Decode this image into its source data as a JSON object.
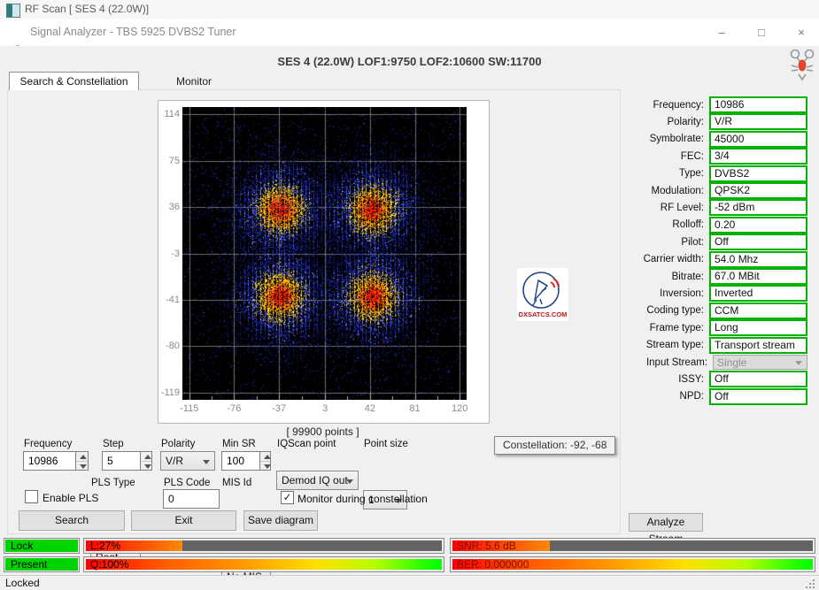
{
  "window": {
    "outer_title": "RF Scan [ SES 4 (22.0W)]",
    "title": "Signal Analyzer - TBS 5925 DVBS2 Tuner",
    "header": "SES 4 (22.0W) LOF1:9750 LOF2:10600 SW:11700",
    "minimize": "–",
    "maximize": "□",
    "close": "×",
    "status_text": "Locked"
  },
  "tabs": [
    {
      "label": "Search & Constellation",
      "active": true
    },
    {
      "label": "Monitor",
      "active": false
    }
  ],
  "chart_data": {
    "type": "scatter",
    "subtype": "constellation-heatmap",
    "modulation": "QPSK2",
    "caption": "[ 99900 points ]",
    "points_total": 99900,
    "x_ticks": [
      -115,
      -76,
      -37,
      3,
      42,
      81,
      120
    ],
    "y_ticks": [
      114,
      75,
      36,
      -3,
      -41,
      -80,
      -119
    ],
    "xlim": [
      -121,
      126
    ],
    "ylim": [
      -125,
      120
    ],
    "clusters": [
      {
        "i": -36,
        "q": 34
      },
      {
        "i": 44,
        "q": 34
      },
      {
        "i": -36,
        "q": -39
      },
      {
        "i": 44,
        "q": -39
      }
    ],
    "grid": true,
    "background": "#000000",
    "grid_color": "#8a8a8a",
    "heat_palette": [
      "#131b86",
      "#2030cf",
      "#4356f0",
      "#ffdf30",
      "#ffaa00",
      "#ff6400",
      "#ff1c00"
    ]
  },
  "tooltip": {
    "text": "Constellation: -92, -68"
  },
  "watermark": {
    "text": "DXSATCS.COM"
  },
  "controls": {
    "frequency": {
      "label": "Frequency",
      "value": "10986"
    },
    "step": {
      "label": "Step",
      "value": "5"
    },
    "polarity": {
      "label": "Polarity",
      "value": "V/R"
    },
    "min_sr": {
      "label": "Min SR",
      "value": "100"
    },
    "iqscan_point": {
      "label": "IQScan point",
      "value": "Demod IQ out"
    },
    "point_size": {
      "label": "Point size",
      "value": "1"
    },
    "enable_pls": {
      "label": "Enable PLS",
      "checked": false
    },
    "pls_type": {
      "label": "PLS Type",
      "value": "Root"
    },
    "pls_code": {
      "label": "PLS Code",
      "value": "0"
    },
    "mis_id": {
      "label": "MIS Id",
      "value": "No MIS"
    },
    "monitor_during": {
      "label": "Monitor during constellation",
      "checked": true
    },
    "buttons": {
      "search": "Search",
      "exit": "Exit",
      "save_diagram": "Save diagram",
      "analyze_stream": "Analyze Stream"
    }
  },
  "right_panel": {
    "fields": [
      {
        "label": "Frequency:",
        "value": "10986",
        "type": "box"
      },
      {
        "label": "Polarity:",
        "value": "V/R",
        "type": "box"
      },
      {
        "label": "Symbolrate:",
        "value": "45000",
        "type": "box"
      },
      {
        "label": "FEC:",
        "value": "3/4",
        "type": "box"
      },
      {
        "label": "Type:",
        "value": "DVBS2",
        "type": "box"
      },
      {
        "label": "Modulation:",
        "value": "QPSK2",
        "type": "box"
      },
      {
        "label": "RF Level:",
        "value": "-52 dBm",
        "type": "box"
      },
      {
        "label": "Rolloff:",
        "value": "0.20",
        "type": "box"
      },
      {
        "label": "Pilot:",
        "value": "Off",
        "type": "box"
      },
      {
        "label": "Carrier width:",
        "value": "54.0 Mhz",
        "type": "box"
      },
      {
        "label": "Bitrate:",
        "value": "67.0 MBit",
        "type": "box"
      },
      {
        "label": "Inversion:",
        "value": "Inverted",
        "type": "box"
      },
      {
        "label": "Coding type:",
        "value": "CCM",
        "type": "box"
      },
      {
        "label": "Frame type:",
        "value": "Long",
        "type": "box"
      },
      {
        "label": "Stream type:",
        "value": "Transport stream",
        "type": "box"
      },
      {
        "label": "Input Stream:",
        "value": "Single",
        "type": "dropdown_disabled"
      },
      {
        "label": "ISSY:",
        "value": "Off",
        "type": "box"
      },
      {
        "label": "NPD:",
        "value": "Off",
        "type": "box"
      }
    ],
    "field_border_color": "#00b300"
  },
  "status_bars": {
    "lock": {
      "label": "Lock",
      "color": "#00d400"
    },
    "present": {
      "label": "Present",
      "color": "#00d400"
    },
    "level": {
      "text": "L:27%",
      "percent": 27
    },
    "quality": {
      "text": "Q:100%",
      "percent": 100
    },
    "snr": {
      "text": "SNR: 5.6 dB",
      "percent": 27
    },
    "ber": {
      "text": "BER: 0.000000",
      "percent": 100
    }
  }
}
